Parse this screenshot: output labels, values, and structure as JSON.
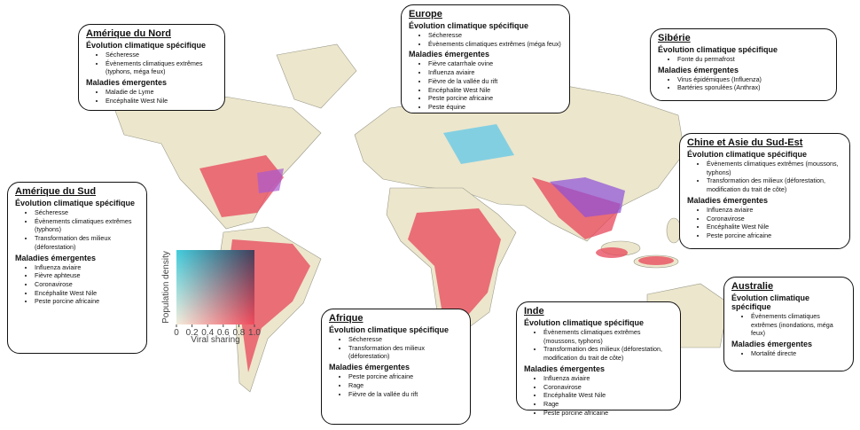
{
  "legend": {
    "x_label": "Viral sharing",
    "y_label": "Population density",
    "xlim": [
      0,
      1
    ],
    "xticks": [
      0,
      0.2,
      0.4,
      0.6,
      0.8,
      {
        "value": 1,
        "label": "1.0"
      }
    ]
  },
  "regions": [
    {
      "title": "Amérique du Nord",
      "climate_heading": "Évolution climatique spécifique",
      "climate": [
        "Sécheresse",
        "Évènements climatiques extrêmes (typhons, méga feux)"
      ],
      "disease_heading": "Maladies émergentes",
      "diseases": [
        "Maladie de Lyme",
        "Encéphalite West Nile"
      ]
    },
    {
      "title": "Europe",
      "climate_heading": "Évolution climatique spécifique",
      "climate": [
        "Sécheresse",
        "Évènements climatiques extrêmes (méga feux)"
      ],
      "disease_heading": "Maladies émergentes",
      "diseases": [
        "Fièvre catarrhale ovine",
        "Influenza aviaire",
        "Fièvre de la vallée du rift",
        "Encéphalite West Nile",
        "Peste porcine africaine",
        "Peste équine"
      ]
    },
    {
      "title": "Sibérie",
      "climate_heading": "Évolution climatique spécifique",
      "climate": [
        "Fonte du permafrost"
      ],
      "disease_heading": "Maladies émergentes",
      "diseases": [
        "Virus épidémiques (Influenza)",
        "Bartéries sporulées (Anthrax)"
      ]
    },
    {
      "title": "Chine et Asie du Sud-Est",
      "climate_heading": "Évolution climatique spécifique",
      "climate": [
        "Évènements climatiques extrêmes (moussons, typhons)",
        "Transformation des milieux (déforestation, modification du trait de côte)"
      ],
      "disease_heading": "Maladies émergentes",
      "diseases": [
        "Influenza aviaire",
        "Coronavirose",
        "Encéphalite West Nile",
        "Peste porcine africaine"
      ]
    },
    {
      "title": "Amérique du Sud",
      "climate_heading": "Évolution climatique spécifique",
      "climate": [
        "Sécheresse",
        "Évènements climatiques extrêmes (typhons)",
        "Transformation des milieux (déforestation)"
      ],
      "disease_heading": "Maladies émergentes",
      "diseases": [
        "Influenza aviaire",
        "Fièvre aphteuse",
        "Coronavirose",
        "Encéphalite West Nile",
        "Peste porcine africaine"
      ]
    },
    {
      "title": "Australie",
      "climate_heading": "Évolution climatique spécifique",
      "climate": [
        "Évènements climatiques extrêmes (inondations, méga feux)"
      ],
      "disease_heading": "Maladies émergentes",
      "diseases": [
        "Mortalité directe"
      ]
    },
    {
      "title": "Afrique",
      "climate_heading": "Évolution climatique spécifique",
      "climate": [
        "Sécheresse",
        "Transformation des milieux (déforestation)"
      ],
      "disease_heading": "Maladies émergentes",
      "diseases": [
        "Peste porcine africaine",
        "Rage",
        "Fièvre de la vallée du rift"
      ]
    },
    {
      "title": "Inde",
      "climate_heading": "Évolution climatique spécifique",
      "climate": [
        "Évènements climatiques extrêmes (moussons, typhons)",
        "Transformation des milieux (déforestation, modification du trait de côte)"
      ],
      "disease_heading": "Maladies émergentes",
      "diseases": [
        "Influenza aviaire",
        "Coronavirose",
        "Encéphalite West Nile",
        "Rage",
        "Peste porcine africaine"
      ]
    }
  ]
}
